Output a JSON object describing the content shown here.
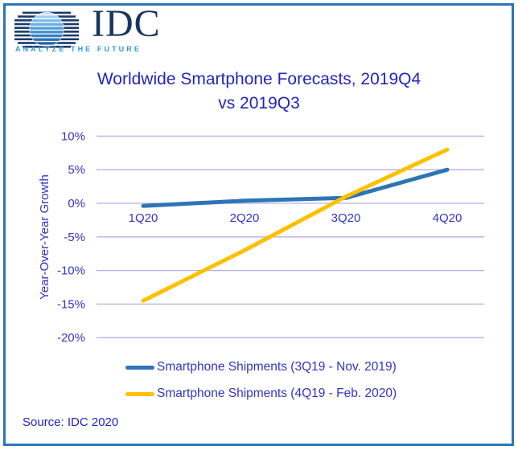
{
  "logo": {
    "text": "IDC",
    "tagline": "ANALYZE THE FUTURE"
  },
  "title": {
    "line1": "Worldwide Smartphone Forecasts, 2019Q4",
    "line2": "vs 2019Q3"
  },
  "source": "Source: IDC 2020",
  "colors": {
    "frame_border": "#2E75B6",
    "title_text": "#2424BE",
    "axis_text": "#3434C4",
    "gridline": "#B4AFE4",
    "logo_navy": "#17365D",
    "logo_tagline_blue": "#2E9BD6"
  },
  "chart_data": {
    "type": "line",
    "title": "Worldwide Smartphone Forecasts, 2019Q4 vs 2019Q3",
    "categories": [
      "1Q20",
      "2Q20",
      "3Q20",
      "4Q20"
    ],
    "series": [
      {
        "name": "Smartphone Shipments (3Q19 - Nov. 2019)",
        "color": "#2E75B6",
        "values": [
          -0.4,
          0.4,
          0.8,
          5.0
        ]
      },
      {
        "name": "Smartphone Shipments (4Q19 - Feb. 2020)",
        "color": "#FFC000",
        "values": [
          -14.5,
          -7.0,
          1.0,
          8.0
        ]
      }
    ],
    "xlabel": "",
    "ylabel": "Year-Over-Year Growth",
    "ylim": [
      -20,
      10
    ],
    "ytick_step": 5,
    "ytick_labels": [
      "10%",
      "5%",
      "0%",
      "-5%",
      "-10%",
      "-15%",
      "-20%"
    ],
    "grid": "horizontal",
    "legend_position": "bottom"
  }
}
